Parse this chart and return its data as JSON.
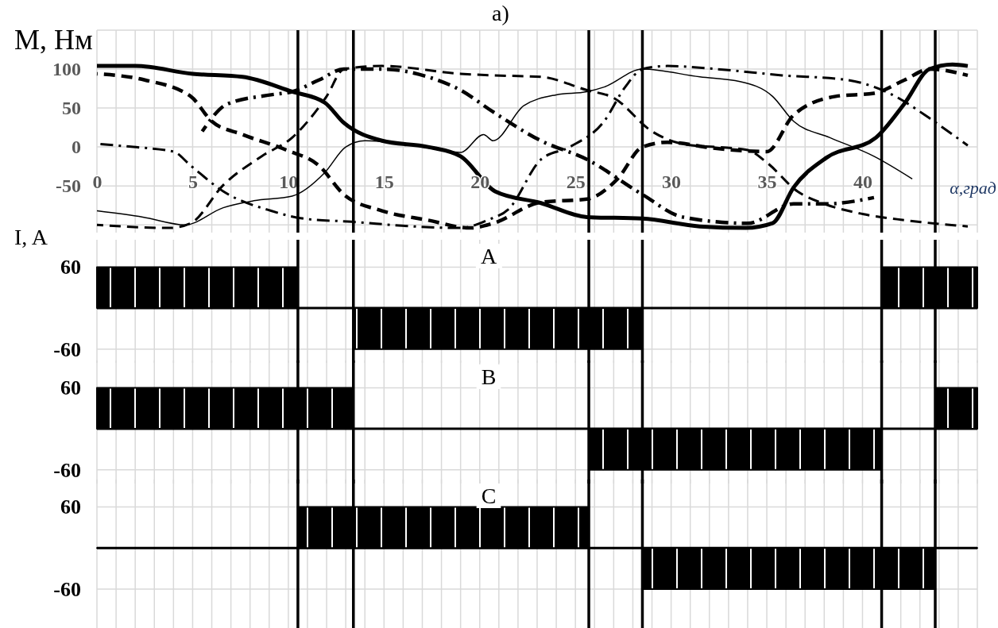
{
  "chart_data": [
    {
      "type": "line",
      "title": "а)",
      "ylabel": "M, Нм",
      "xlabel": "α,град",
      "xlim": [
        0,
        46
      ],
      "xticks": [
        0,
        {
          "value": 1,
          "label": null
        },
        {
          "value": 2,
          "label": null
        },
        {
          "value": 3,
          "label": null
        },
        {
          "value": 4,
          "label": null
        },
        5,
        {
          "value": 6,
          "label": null
        },
        {
          "value": 7,
          "label": null
        },
        {
          "value": 8,
          "label": null
        },
        {
          "value": 9,
          "label": null
        },
        10,
        {
          "value": 11,
          "label": null
        },
        {
          "value": 12,
          "label": null
        },
        {
          "value": 13,
          "label": null
        },
        {
          "value": 14,
          "label": null
        },
        15,
        {
          "value": 16,
          "label": null
        },
        {
          "value": 17,
          "label": null
        },
        {
          "value": 18,
          "label": null
        },
        {
          "value": 19,
          "label": null
        },
        20,
        {
          "value": 21,
          "label": null
        },
        {
          "value": 22,
          "label": null
        },
        {
          "value": 23,
          "label": null
        },
        {
          "value": 24,
          "label": null
        },
        25,
        {
          "value": 26,
          "label": null
        },
        {
          "value": 27,
          "label": null
        },
        {
          "value": 28,
          "label": null
        },
        {
          "value": 29,
          "label": null
        },
        30,
        {
          "value": 31,
          "label": null
        },
        {
          "value": 32,
          "label": null
        },
        {
          "value": 33,
          "label": null
        },
        {
          "value": 34,
          "label": null
        },
        35,
        {
          "value": 36,
          "label": null
        },
        {
          "value": 37,
          "label": null
        },
        {
          "value": 38,
          "label": null
        },
        {
          "value": 39,
          "label": null
        },
        40,
        {
          "value": 41,
          "label": null
        },
        {
          "value": 42,
          "label": null
        },
        {
          "value": 43,
          "label": null
        },
        {
          "value": 44,
          "label": null
        },
        {
          "value": 45,
          "label": null
        },
        {
          "value": 46,
          "label": null
        }
      ],
      "ylim": [
        -110,
        150
      ],
      "yticks": [
        {
          "value": -100,
          "label": null
        },
        -50,
        0,
        50,
        100,
        {
          "value": 150,
          "label": null
        }
      ],
      "grid": true,
      "series": [
        {
          "color": "#000000",
          "line_style": "solid",
          "x": [
            0,
            2,
            5,
            7.6,
            10.2,
            11.9,
            12.9,
            14.9,
            17.3,
            19,
            20.8,
            23.2,
            25.6,
            28.5,
            31.5,
            33.9,
            35.3,
            36.4,
            38.1,
            40.7,
            42.2,
            43.5,
            44.7,
            45.5
          ],
          "values": [
            104,
            104,
            94,
            90,
            71,
            57,
            31,
            8,
            0,
            -12,
            -57,
            -72,
            -90,
            -92,
            -102,
            -104,
            -98,
            -52,
            -14,
            12,
            56,
            100,
            106,
            104
          ]
        },
        {
          "color": "#000000",
          "line_style": "solid",
          "x": [
            0,
            2.4,
            4.6,
            6.6,
            8.2,
            10.2,
            11.9,
            13,
            14,
            16.5,
            19,
            20.2,
            20.7,
            22.3,
            24,
            25.6,
            26.5,
            28.5,
            31.5,
            33.6,
            35.3,
            36.4,
            38.3,
            40.6,
            42.6
          ],
          "values": [
            -82,
            -90,
            -100,
            -78,
            -69,
            -63,
            -33,
            0,
            8,
            2,
            -7,
            16,
            8,
            53,
            67,
            71,
            77,
            100,
            90,
            84,
            65,
            33,
            12,
            -12,
            -41
          ]
        },
        {
          "color": "#000000",
          "line_style": "dashed",
          "x": [
            0,
            2.5,
            4.9,
            6,
            7.6,
            9.9,
            11.6,
            12.9,
            14.9,
            17.3,
            19.5,
            20.7,
            23.2,
            25.6,
            27.2,
            28.5,
            29.8,
            32.4,
            35,
            36.4,
            38.6,
            40.6,
            42.2,
            43.5,
            45.5
          ],
          "values": [
            94,
            86,
            65,
            33,
            16,
            -4,
            -24,
            -61,
            -82,
            -94,
            -104,
            -98,
            -71,
            -67,
            -41,
            0,
            6,
            -2,
            -6,
            41,
            65,
            69,
            86,
            100,
            92
          ]
        },
        {
          "color": "#000000",
          "line_style": "dashed",
          "x": [
            0,
            3.8,
            4.9,
            6.6,
            8.6,
            10.2,
            12,
            12.9,
            14.9,
            19,
            20.7,
            23.2,
            25.6,
            27,
            29,
            30.6,
            34,
            35,
            36.6,
            38,
            40,
            42.2,
            45.5
          ],
          "values": [
            -100,
            -104,
            -98,
            -49,
            -12,
            12,
            65,
            100,
            104,
            94,
            92,
            90,
            73,
            63,
            20,
            4,
            -4,
            -20,
            -57,
            -73,
            -86,
            -94,
            -102
          ]
        },
        {
          "color": "#000000",
          "line_style": "dashdot",
          "x": [
            0,
            1.9,
            4,
            4.9,
            6.6,
            9.1,
            10.8,
            13.3,
            16.5,
            19,
            20.4,
            21.5,
            23.2,
            24.7,
            26.5,
            27.6,
            28.5,
            29.8,
            32.4,
            35.8,
            39.2,
            41.4,
            43.5,
            44.7,
            45.5
          ],
          "values": [
            4,
            0,
            -6,
            -24,
            -57,
            -82,
            -92,
            -96,
            -102,
            -104,
            -94,
            -80,
            -16,
            0,
            33,
            77,
            100,
            104,
            100,
            92,
            86,
            69,
            37,
            16,
            2
          ]
        },
        {
          "color": "#000000",
          "line_style": "dashdot",
          "x": [
            5.5,
            6.8,
            9.1,
            10.2,
            11.6,
            12.9,
            14.9,
            17.3,
            19,
            20.7,
            23.2,
            25.6,
            28.5,
            30.6,
            34,
            36.4,
            38.1,
            40.6
          ],
          "values": [
            20,
            55,
            67,
            71,
            86,
            100,
            100,
            90,
            73,
            45,
            8,
            -16,
            -61,
            -90,
            -98,
            -73,
            -73,
            -65
          ]
        }
      ],
      "ref_lines": [
        {
          "axis": "x",
          "value": 10.5
        },
        {
          "axis": "x",
          "value": 13.4
        },
        {
          "axis": "x",
          "value": 25.7
        },
        {
          "axis": "x",
          "value": 28.5
        },
        {
          "axis": "x",
          "value": 41
        },
        {
          "axis": "x",
          "value": 43.8
        }
      ]
    },
    {
      "type": "area",
      "title": "A",
      "ylabel": "I, A",
      "xlim": [
        0,
        46
      ],
      "tick_labels": "y",
      "ylim": [
        -80,
        100
      ],
      "yticks": [
        -60,
        {
          "value": 0,
          "label": null
        },
        60
      ],
      "grid": true,
      "series": [
        {
          "color": "#000000",
          "x": [
            0,
            10.5,
            10.5,
            13.4,
            13.4,
            28.5,
            28.5,
            41,
            41,
            46
          ],
          "values": [
            60,
            60,
            0,
            0,
            -60,
            -60,
            0,
            0,
            60,
            60
          ]
        }
      ],
      "ref_lines": [
        {
          "axis": "x",
          "value": 10.5
        },
        {
          "axis": "x",
          "value": 13.4
        },
        {
          "axis": "x",
          "value": 25.7
        },
        {
          "axis": "x",
          "value": 28.5
        },
        {
          "axis": "x",
          "value": 41
        },
        {
          "axis": "x",
          "value": 43.8
        }
      ]
    },
    {
      "type": "area",
      "title": "B",
      "xlim": [
        0,
        46
      ],
      "tick_labels": "y",
      "ylim": [
        -80,
        100
      ],
      "yticks": [
        -60,
        {
          "value": 0,
          "label": null
        },
        60
      ],
      "grid": true,
      "series": [
        {
          "color": "#000000",
          "x": [
            0,
            13.4,
            13.4,
            25.7,
            25.7,
            41,
            41,
            43.8,
            43.8,
            46
          ],
          "values": [
            60,
            60,
            0,
            0,
            -60,
            -60,
            0,
            0,
            60,
            60
          ]
        }
      ],
      "ref_lines": [
        {
          "axis": "x",
          "value": 10.5
        },
        {
          "axis": "x",
          "value": 13.4
        },
        {
          "axis": "x",
          "value": 25.7
        },
        {
          "axis": "x",
          "value": 28.5
        },
        {
          "axis": "x",
          "value": 41
        },
        {
          "axis": "x",
          "value": 43.8
        }
      ]
    },
    {
      "type": "area",
      "title": "C",
      "xlim": [
        0,
        46
      ],
      "tick_labels": "y",
      "ylim": [
        -117,
        100
      ],
      "yticks": [
        -60,
        {
          "value": 0,
          "label": null
        },
        60
      ],
      "grid": true,
      "series": [
        {
          "color": "#000000",
          "x": [
            0,
            10.5,
            10.5,
            25.7,
            25.7,
            28.5,
            28.5,
            43.8,
            43.8,
            46
          ],
          "values": [
            0,
            0,
            60,
            60,
            0,
            0,
            -60,
            -60,
            0,
            0
          ]
        }
      ],
      "ref_lines": [
        {
          "axis": "x",
          "value": 10.5
        },
        {
          "axis": "x",
          "value": 13.4
        },
        {
          "axis": "x",
          "value": 25.7
        },
        {
          "axis": "x",
          "value": 28.5
        },
        {
          "axis": "x",
          "value": 41
        },
        {
          "axis": "x",
          "value": 43.8
        }
      ]
    }
  ]
}
